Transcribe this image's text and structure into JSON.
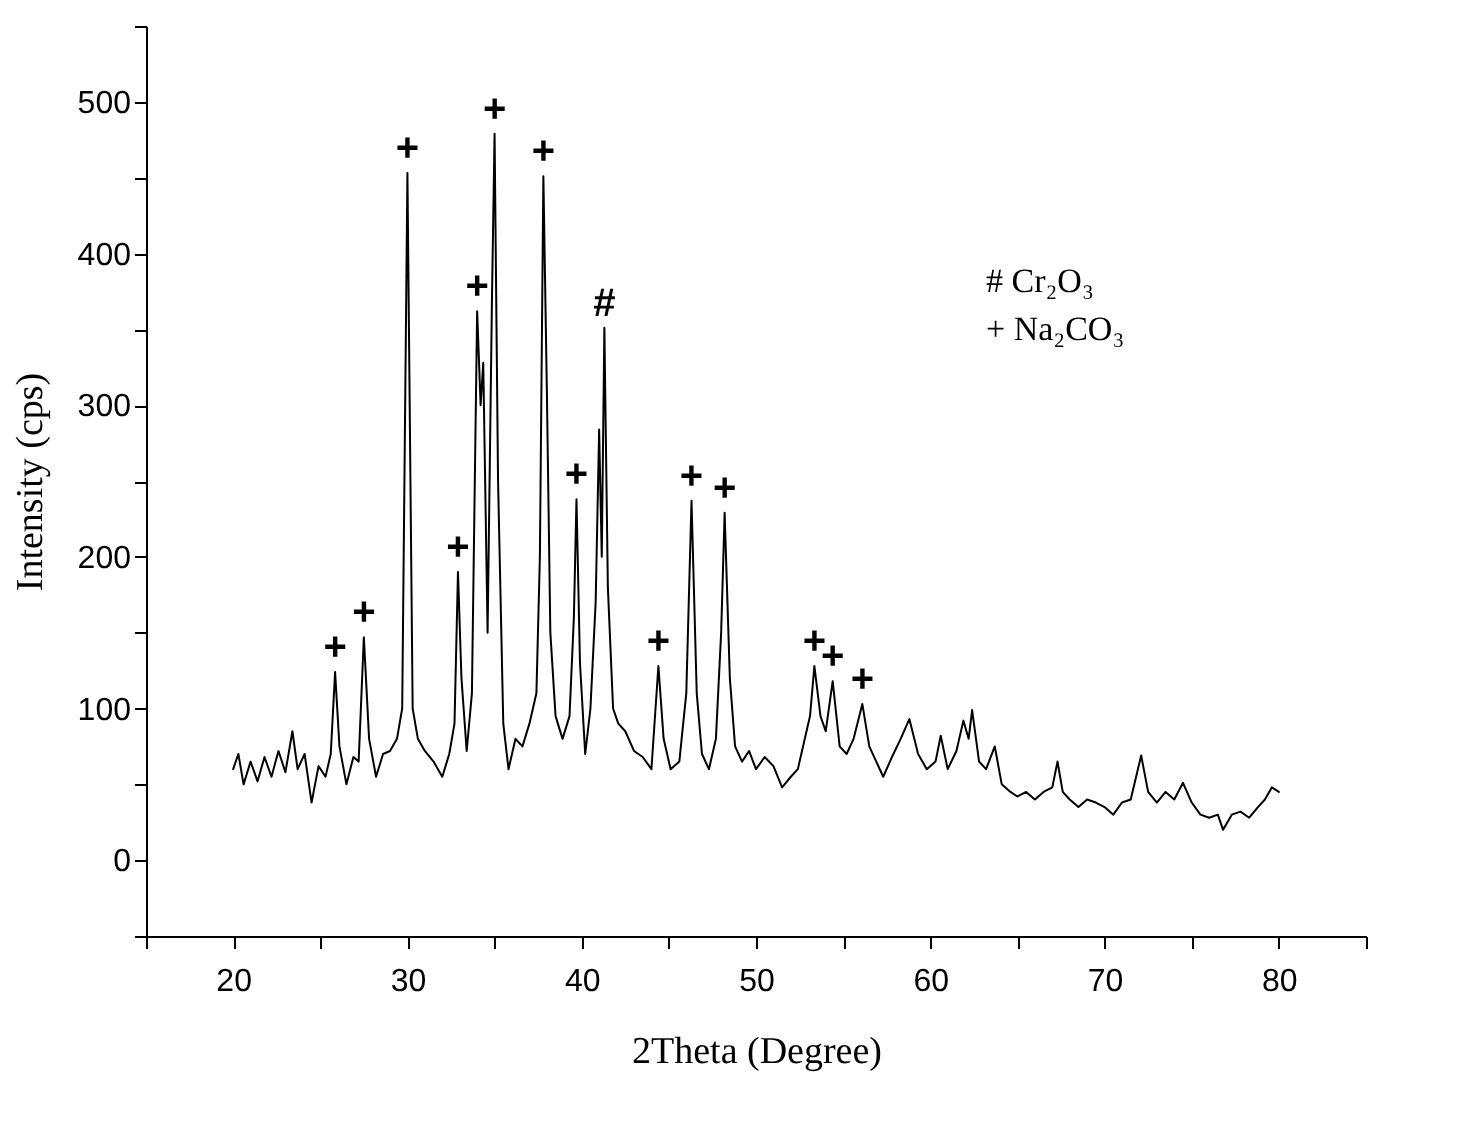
{
  "chart_data": {
    "type": "line",
    "xlabel": "2Theta (Degree)",
    "ylabel": "Intensity (cps)",
    "xlim": [
      15,
      85
    ],
    "ylim": [
      -50,
      550
    ],
    "xticks": [
      {
        "value": 15,
        "label": null
      },
      20,
      {
        "value": 25,
        "label": null
      },
      30,
      {
        "value": 35,
        "label": null
      },
      40,
      {
        "value": 45,
        "label": null
      },
      50,
      {
        "value": 55,
        "label": null
      },
      60,
      {
        "value": 65,
        "label": null
      },
      70,
      {
        "value": 75,
        "label": null
      },
      80,
      {
        "value": 85,
        "label": null
      }
    ],
    "yticks": [
      {
        "value": -50,
        "label": null
      },
      0,
      {
        "value": 50,
        "label": null
      },
      100,
      {
        "value": 150,
        "label": null
      },
      200,
      {
        "value": 250,
        "label": null
      },
      300,
      {
        "value": 350,
        "label": null
      },
      400,
      {
        "value": 450,
        "label": null
      },
      500,
      {
        "value": 550,
        "label": null
      }
    ],
    "series": [
      {
        "color": "#000000",
        "x": [
          20.0,
          20.3,
          20.6,
          21.0,
          21.4,
          21.8,
          22.2,
          22.6,
          23.0,
          23.4,
          23.7,
          24.1,
          24.5,
          24.9,
          25.3,
          25.6,
          25.85,
          26.1,
          26.5,
          26.9,
          27.2,
          27.5,
          27.8,
          28.2,
          28.6,
          29.0,
          29.4,
          29.7,
          30.0,
          30.3,
          30.6,
          31.0,
          31.5,
          32.0,
          32.4,
          32.7,
          32.9,
          33.1,
          33.4,
          33.7,
          34.0,
          34.2,
          34.35,
          34.6,
          34.85,
          35.0,
          35.2,
          35.5,
          35.8,
          36.2,
          36.6,
          37.0,
          37.4,
          37.6,
          37.8,
          38.0,
          38.2,
          38.5,
          38.9,
          39.3,
          39.55,
          39.7,
          39.9,
          40.2,
          40.5,
          40.8,
          41.0,
          41.15,
          41.3,
          41.5,
          41.8,
          42.1,
          42.5,
          43.0,
          43.5,
          44.0,
          44.4,
          44.7,
          45.1,
          45.6,
          46.0,
          46.3,
          46.6,
          46.9,
          47.3,
          47.7,
          48.0,
          48.2,
          48.5,
          48.8,
          49.2,
          49.6,
          50.0,
          50.5,
          51.0,
          51.5,
          52.0,
          52.4,
          52.8,
          53.1,
          53.35,
          53.7,
          54.0,
          54.4,
          54.8,
          55.2,
          55.6,
          56.1,
          56.5,
          56.9,
          57.3,
          57.8,
          58.3,
          58.8,
          59.3,
          59.8,
          60.3,
          60.6,
          61.0,
          61.5,
          61.9,
          62.2,
          62.4,
          62.8,
          63.2,
          63.7,
          64.1,
          64.6,
          65.0,
          65.5,
          66.0,
          66.5,
          67.0,
          67.3,
          67.6,
          68.0,
          68.5,
          69.0,
          69.5,
          70.0,
          70.5,
          71.0,
          71.5,
          72.1,
          72.5,
          73.0,
          73.5,
          74.0,
          74.5,
          75.0,
          75.5,
          76.0,
          76.5,
          76.8,
          77.3,
          77.8,
          78.3,
          78.8,
          79.2,
          79.6,
          80.0
        ],
        "values": [
          60,
          70,
          50,
          65,
          52,
          68,
          55,
          72,
          58,
          85,
          60,
          70,
          38,
          62,
          55,
          70,
          124,
          75,
          50,
          68,
          65,
          147,
          80,
          55,
          70,
          72,
          80,
          100,
          453,
          100,
          80,
          72,
          65,
          55,
          70,
          90,
          190,
          120,
          72,
          110,
          362,
          300,
          328,
          150,
          370,
          479,
          250,
          90,
          60,
          80,
          75,
          90,
          110,
          200,
          451,
          310,
          150,
          95,
          80,
          95,
          160,
          238,
          130,
          70,
          100,
          170,
          284,
          200,
          351,
          180,
          100,
          90,
          85,
          72,
          68,
          60,
          128,
          80,
          60,
          65,
          110,
          237,
          110,
          70,
          60,
          80,
          150,
          229,
          120,
          75,
          65,
          72,
          60,
          68,
          62,
          48,
          55,
          60,
          80,
          95,
          128,
          95,
          85,
          118,
          75,
          70,
          80,
          103,
          75,
          65,
          55,
          68,
          80,
          93,
          70,
          60,
          65,
          82,
          60,
          72,
          92,
          80,
          99,
          65,
          60,
          75,
          50,
          45,
          42,
          45,
          40,
          45,
          48,
          65,
          45,
          40,
          35,
          40,
          38,
          35,
          30,
          38,
          40,
          69,
          45,
          38,
          45,
          40,
          51,
          38,
          30,
          28,
          30,
          20,
          30,
          32,
          28,
          35,
          40,
          48,
          45
        ]
      }
    ],
    "annotations": [
      {
        "text": "+",
        "x": 25.85,
        "y": 124
      },
      {
        "text": "+",
        "x": 27.5,
        "y": 147
      },
      {
        "text": "+",
        "x": 30.0,
        "y": 453
      },
      {
        "text": "+",
        "x": 32.9,
        "y": 190
      },
      {
        "text": "+",
        "x": 34.0,
        "y": 362
      },
      {
        "text": "+",
        "x": 35.0,
        "y": 479
      },
      {
        "text": "+",
        "x": 37.8,
        "y": 451
      },
      {
        "text": "+",
        "x": 39.7,
        "y": 238
      },
      {
        "text": "#",
        "x": 41.3,
        "y": 351
      },
      {
        "text": "+",
        "x": 44.4,
        "y": 128
      },
      {
        "text": "+",
        "x": 46.3,
        "y": 237
      },
      {
        "text": "+",
        "x": 48.2,
        "y": 229
      },
      {
        "text": "+",
        "x": 53.35,
        "y": 128
      },
      {
        "text": "+",
        "x": 54.4,
        "y": 118
      },
      {
        "text": "+",
        "x": 56.1,
        "y": 103
      },
      "#  Cr₂O₃",
      "+   Na₂CO₃"
    ]
  }
}
